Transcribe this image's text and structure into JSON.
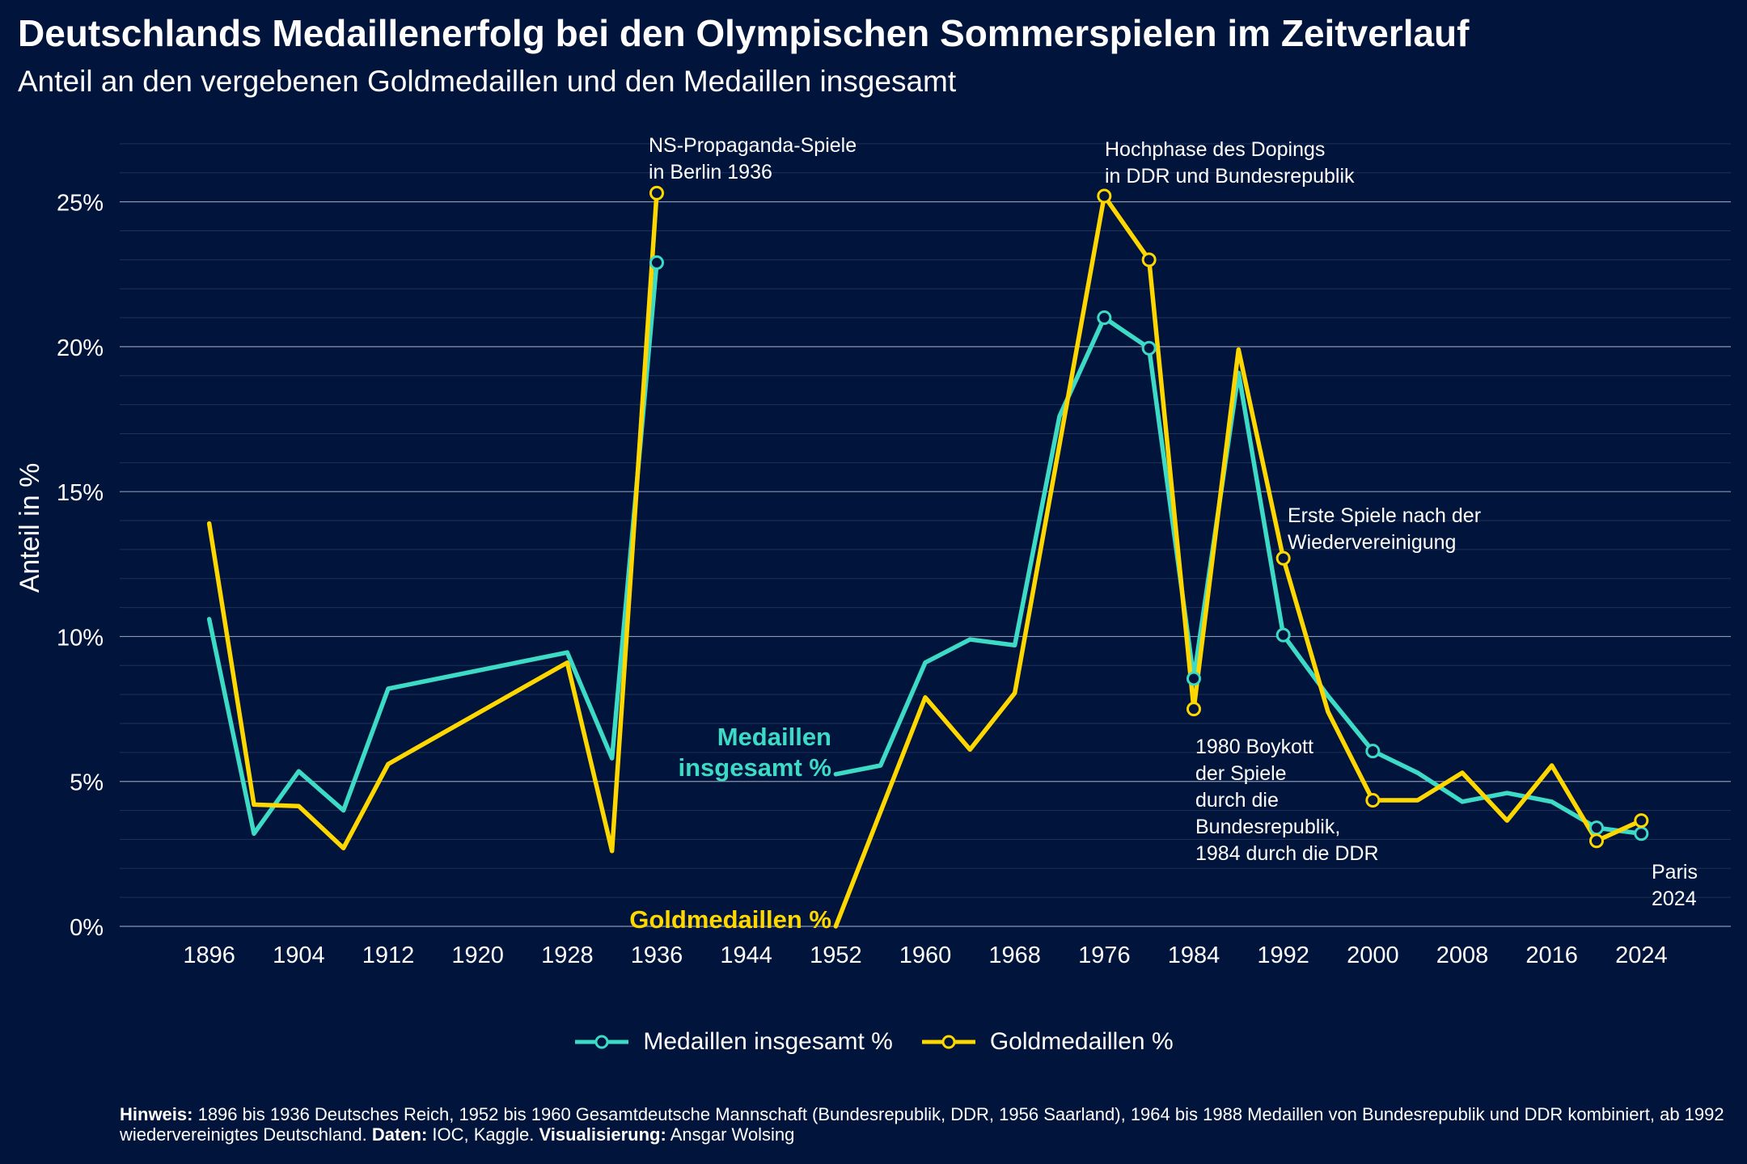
{
  "title": "Deutschlands Medaillenerfolg bei den Olympischen Sommerspielen im Zeitverlauf",
  "subtitle": "Anteil an den vergebenen Goldmedaillen und den Medaillen insgesamt",
  "colors": {
    "background": "#00143c",
    "total": "#3ddbc6",
    "gold": "#ffd700",
    "grid": "#5a6a8a"
  },
  "chart_data": {
    "type": "line",
    "ylabel": "Anteil in %",
    "xlabel": "",
    "xlim": [
      1888,
      2032
    ],
    "ylim": [
      0,
      27.5
    ],
    "x_ticks": [
      1896,
      1904,
      1912,
      1920,
      1928,
      1936,
      1944,
      1952,
      1960,
      1968,
      1976,
      1984,
      1992,
      2000,
      2008,
      2016,
      2024
    ],
    "y_ticks": [
      {
        "value": 0,
        "label": "0%"
      },
      {
        "value": 5,
        "label": "5%"
      },
      {
        "value": 10,
        "label": "10%"
      },
      {
        "value": 15,
        "label": "15%"
      },
      {
        "value": 20,
        "label": "20%"
      },
      {
        "value": 25,
        "label": "25%"
      }
    ],
    "legend_position": "bottom",
    "series": [
      {
        "name": "Medaillen insgesamt %",
        "inline_label": "Medaillen insgesamt %",
        "inline_label_lines": [
          "Medaillen",
          "insgesamt %"
        ],
        "color": "#3ddbc6",
        "segments": [
          [
            [
              1896,
              10.6
            ],
            [
              1900,
              3.2
            ],
            [
              1904,
              5.35
            ],
            [
              1908,
              4.0
            ],
            [
              1912,
              8.2
            ],
            [
              1928,
              9.45
            ],
            [
              1932,
              5.8
            ],
            [
              1936,
              22.9
            ]
          ],
          [
            [
              1952,
              5.25
            ],
            [
              1956,
              5.55
            ],
            [
              1960,
              9.1
            ],
            [
              1964,
              9.9
            ],
            [
              1968,
              9.7
            ],
            [
              1972,
              17.6
            ],
            [
              1976,
              21.0
            ],
            [
              1980,
              19.95
            ],
            [
              1984,
              8.55
            ],
            [
              1988,
              19.1
            ],
            [
              1992,
              10.05
            ],
            [
              1996,
              7.95
            ],
            [
              2000,
              6.05
            ],
            [
              2004,
              5.3
            ],
            [
              2008,
              4.3
            ],
            [
              2012,
              4.6
            ],
            [
              2016,
              4.3
            ],
            [
              2020,
              3.4
            ],
            [
              2024,
              3.2
            ]
          ]
        ],
        "markers": [
          1936,
          1976,
          1980,
          1984,
          1992,
          2000,
          2020,
          2024
        ]
      },
      {
        "name": "Goldmedaillen %",
        "inline_label": "Goldmedaillen %",
        "inline_label_lines": [
          "Goldmedaillen %"
        ],
        "color": "#ffd700",
        "segments": [
          [
            [
              1896,
              13.9
            ],
            [
              1900,
              4.2
            ],
            [
              1904,
              4.15
            ],
            [
              1908,
              2.7
            ],
            [
              1912,
              5.6
            ],
            [
              1928,
              9.1
            ],
            [
              1932,
              2.6
            ],
            [
              1936,
              25.3
            ]
          ],
          [
            [
              1952,
              0.0
            ],
            [
              1960,
              7.9
            ],
            [
              1964,
              6.1
            ],
            [
              1968,
              8.05
            ],
            [
              1976,
              25.2
            ],
            [
              1980,
              23.0
            ],
            [
              1984,
              7.5
            ],
            [
              1988,
              19.9
            ],
            [
              1992,
              12.7
            ],
            [
              1996,
              7.4
            ],
            [
              2000,
              4.35
            ],
            [
              2004,
              4.35
            ],
            [
              2008,
              5.3
            ],
            [
              2012,
              3.65
            ],
            [
              2016,
              5.55
            ],
            [
              2020,
              2.95
            ],
            [
              2024,
              3.65
            ]
          ]
        ],
        "markers": [
          1936,
          1976,
          1980,
          1984,
          1992,
          2000,
          2020,
          2024
        ]
      }
    ],
    "annotations": [
      {
        "x": 1936,
        "y": 25.3,
        "lines": [
          "NS-Propaganda-Spiele",
          "in Berlin 1936"
        ]
      },
      {
        "x": 1976,
        "y": 25.2,
        "lines": [
          "Hochphase des Dopings",
          "in DDR und Bundesrepublik"
        ]
      },
      {
        "x": 1992,
        "y": 12.7,
        "lines": [
          "Erste Spiele nach der",
          "Wiedervereinigung"
        ]
      },
      {
        "x": 1984,
        "y": 7.5,
        "lines": [
          "1980 Boykott",
          "der Spiele",
          "durch die",
          "Bundesrepublik,",
          "1984 durch die DDR"
        ]
      },
      {
        "x": 2024,
        "y": 3.2,
        "lines": [
          "Paris",
          "2024"
        ]
      }
    ]
  },
  "note": {
    "hinweis_label": "Hinweis:",
    "hinweis_text": " 1896 bis 1936 Deutsches Reich, 1952 bis 1960 Gesamtdeutsche Mannschaft (Bundesrepublik, DDR, 1956 Saarland), 1964 bis 1988 Medaillen von Bundesrepublik und DDR kombiniert, ab 1992 wiedervereinigtes Deutschland. ",
    "daten_label": "Daten:",
    "daten_text": " IOC, Kaggle. ",
    "vis_label": "Visualisierung:",
    "vis_text": " Ansgar Wolsing"
  }
}
